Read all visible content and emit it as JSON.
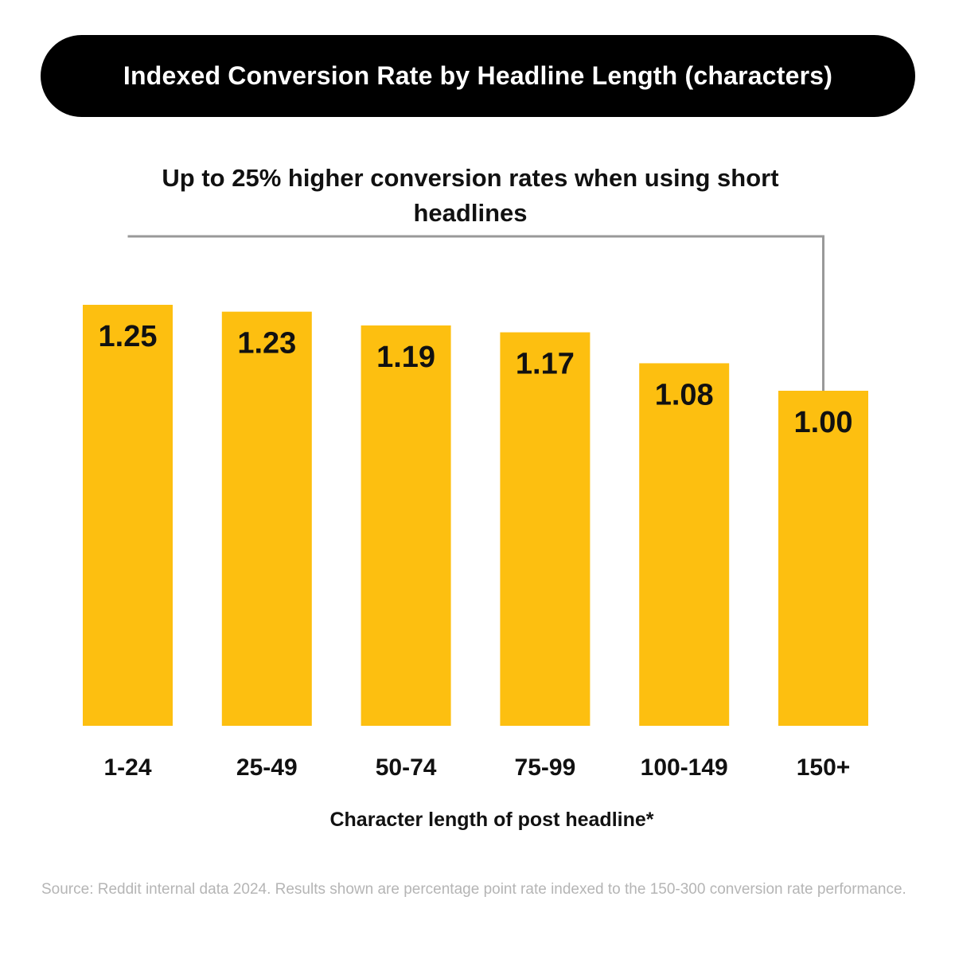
{
  "title": "Indexed Conversion Rate by Headline Length (characters)",
  "subtitle": "Up to 25% higher conversion rates when using short headlines",
  "xlabel": "Character length of post headline*",
  "source": "Source: Reddit internal data 2024. Results shown are percentage point rate indexed to the 150-300 conversion rate performance.",
  "colors": {
    "bar": "#FDBF10",
    "bracket": "#999999",
    "title_bg": "#000000",
    "source_text": "#b5b5b5"
  },
  "chart_data": {
    "type": "bar",
    "title": "Indexed Conversion Rate by Headline Length (characters)",
    "xlabel": "Character length of post headline*",
    "ylabel": "",
    "categories": [
      "1-24",
      "25-49",
      "50-74",
      "75-99",
      "100-149",
      "150+"
    ],
    "values": [
      1.25,
      1.23,
      1.19,
      1.17,
      1.08,
      1.0
    ],
    "data_labels": [
      "1.25",
      "1.23",
      "1.19",
      "1.17",
      "1.08",
      "1.00"
    ],
    "grid": false,
    "legend": "none"
  }
}
